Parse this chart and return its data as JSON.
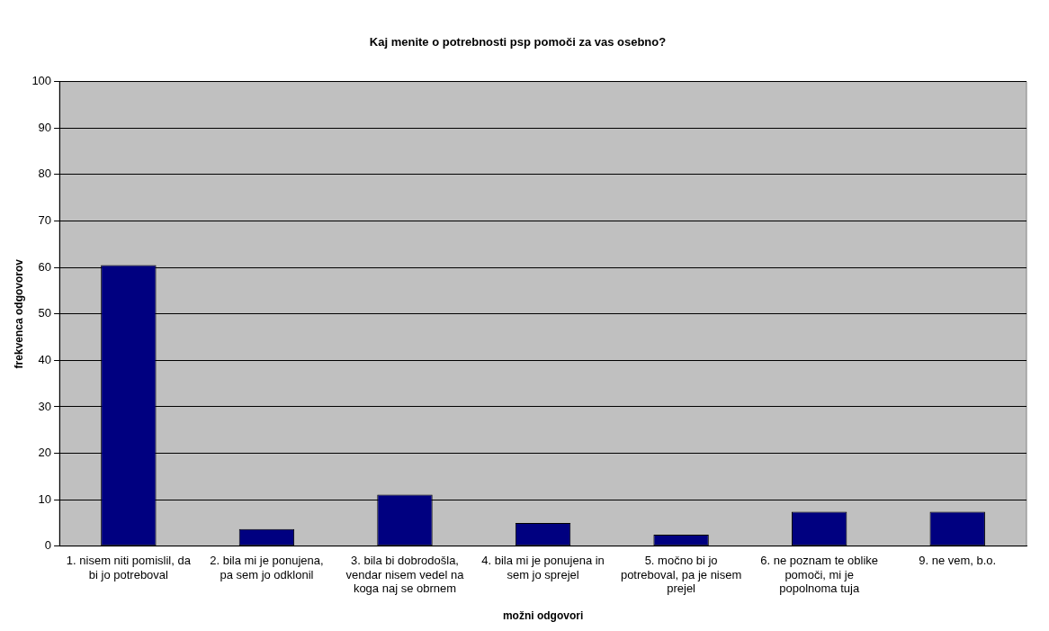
{
  "chart_data": {
    "type": "bar",
    "title": "Kaj menite o potrebnosti psp pomoči za vas osebno?",
    "xlabel": "možni odgovori",
    "ylabel": "frekvenca odgovorov",
    "categories": [
      "1. nisem niti pomislil, da bi jo potreboval",
      "2. bila mi je ponujena, pa sem jo odklonil",
      "3. bila bi dobrodošla, vendar nisem vedel na koga naj se obrnem",
      "4. bila mi je ponujena in sem jo sprejel",
      "5. močno bi jo potreboval, pa je nisem prejel",
      "6. ne poznam te oblike pomoči, mi je popolnoma tuja",
      "9. ne vem, b.o."
    ],
    "values": [
      60.5,
      3.7,
      11.1,
      5.0,
      2.5,
      7.4,
      7.4
    ],
    "color": "#000080",
    "ylim": [
      0,
      100
    ],
    "yticks": [
      0,
      10,
      20,
      30,
      40,
      50,
      60,
      70,
      80,
      90,
      100
    ],
    "grid": "y",
    "legend": false
  }
}
